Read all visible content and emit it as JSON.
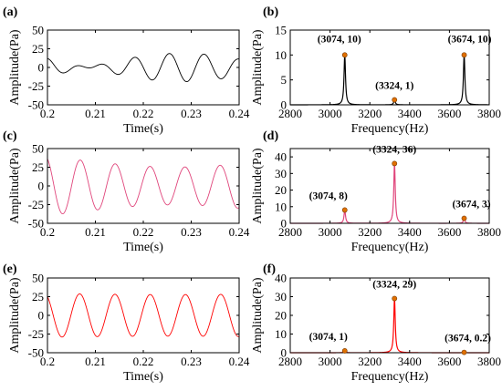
{
  "figure": {
    "panels": [
      "(a)",
      "(b)",
      "(c)",
      "(d)",
      "(e)",
      "(f)"
    ]
  },
  "chart_data": [
    {
      "panel": "(a)",
      "type": "line",
      "xlabel": "Time(s)",
      "ylabel": "Amplitude(Pa)",
      "xlim": [
        0.2,
        0.24
      ],
      "ylim": [
        -50,
        50
      ],
      "xticks": [
        "0.2",
        "0.21",
        "0.22",
        "0.23",
        "0.24"
      ],
      "yticks": [
        "-50",
        "-25",
        "0",
        "25",
        "50"
      ],
      "color": "#000000",
      "signal": {
        "frequencies_hz": [
          3074,
          3324,
          3674
        ],
        "amplitudes_pa": [
          10,
          1,
          10
        ]
      }
    },
    {
      "panel": "(b)",
      "type": "line",
      "xlabel": "Frequency(Hz)",
      "ylabel": "Amplitude(Pa)",
      "xlim": [
        2800,
        3800
      ],
      "ylim": [
        0,
        15
      ],
      "xticks": [
        "2800",
        "3000",
        "3200",
        "3400",
        "3600",
        "3800"
      ],
      "yticks": [
        "0",
        "5",
        "10",
        "15"
      ],
      "color": "#000000",
      "peaks": [
        {
          "x": 3074,
          "y": 10,
          "label": "(3074, 10)"
        },
        {
          "x": 3324,
          "y": 1,
          "label": "(3324, 1)"
        },
        {
          "x": 3674,
          "y": 10,
          "label": "(3674, 10)"
        }
      ]
    },
    {
      "panel": "(c)",
      "type": "line",
      "xlabel": "Time(s)",
      "ylabel": "Amplitude(Pa)",
      "xlim": [
        0.2,
        0.24
      ],
      "ylim": [
        -50,
        50
      ],
      "xticks": [
        "0.2",
        "0.21",
        "0.22",
        "0.23",
        "0.24"
      ],
      "yticks": [
        "-50",
        "-25",
        "0",
        "25",
        "50"
      ],
      "color": "#e0457b",
      "signal": {
        "frequencies_hz": [
          3074,
          3324,
          3674
        ],
        "amplitudes_pa": [
          8,
          36,
          3
        ]
      }
    },
    {
      "panel": "(d)",
      "type": "line",
      "xlabel": "Frequency(Hz)",
      "ylabel": "Amplitude(Pa)",
      "xlim": [
        2800,
        3800
      ],
      "ylim": [
        0,
        45
      ],
      "xticks": [
        "2800",
        "3000",
        "3200",
        "3400",
        "3600",
        "3800"
      ],
      "yticks": [
        "0",
        "10",
        "20",
        "30",
        "40"
      ],
      "color": "#e0457b",
      "peaks": [
        {
          "x": 3074,
          "y": 8,
          "label": "(3074, 8)"
        },
        {
          "x": 3324,
          "y": 36,
          "label": "(3324, 36)"
        },
        {
          "x": 3674,
          "y": 3,
          "label": "(3674, 3)"
        }
      ]
    },
    {
      "panel": "(e)",
      "type": "line",
      "xlabel": "Time(s)",
      "ylabel": "Amplitude(Pa)",
      "xlim": [
        0.2,
        0.24
      ],
      "ylim": [
        -50,
        50
      ],
      "xticks": [
        "0.2",
        "0.21",
        "0.22",
        "0.23",
        "0.24"
      ],
      "yticks": [
        "-50",
        "-25",
        "0",
        "25",
        "50"
      ],
      "color": "#ff0000",
      "signal": {
        "frequencies_hz": [
          3074,
          3324,
          3674
        ],
        "amplitudes_pa": [
          1,
          29,
          0.2
        ]
      }
    },
    {
      "panel": "(f)",
      "type": "line",
      "xlabel": "Frequency(Hz)",
      "ylabel": "Amplitude(Pa)",
      "xlim": [
        2800,
        3800
      ],
      "ylim": [
        0,
        40
      ],
      "xticks": [
        "2800",
        "3000",
        "3200",
        "3400",
        "3600",
        "3800"
      ],
      "yticks": [
        "0",
        "10",
        "20",
        "30",
        "40"
      ],
      "color": "#ff0000",
      "peaks": [
        {
          "x": 3074,
          "y": 1,
          "label": "(3074, 1)"
        },
        {
          "x": 3324,
          "y": 29,
          "label": "(3324, 29)"
        },
        {
          "x": 3674,
          "y": 0.2,
          "label": "(3674, 0.2)"
        }
      ]
    }
  ]
}
